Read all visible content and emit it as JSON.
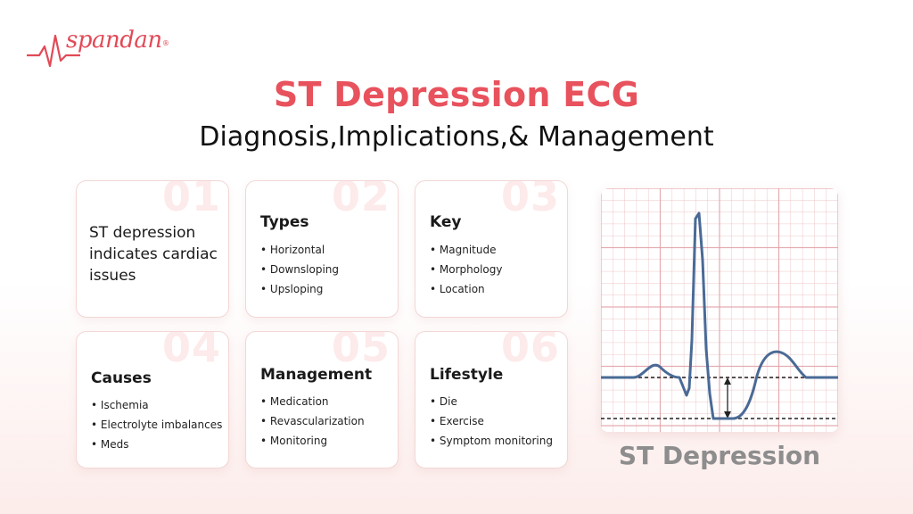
{
  "brand": {
    "name": "spandan",
    "registered": "®",
    "color": "#e24a57"
  },
  "title": "ST Depression ECG",
  "subtitle": "Diagnosis,Implications,& Management",
  "cards": [
    {
      "number": "01",
      "text": "ST depression indicates cardiac issues"
    },
    {
      "number": "02",
      "heading": "Types",
      "items": [
        "Horizontal",
        "Downsloping",
        "Upsloping"
      ]
    },
    {
      "number": "03",
      "heading": "Key",
      "items": [
        "Magnitude",
        "Morphology",
        "Location"
      ]
    },
    {
      "number": "04",
      "heading": "Causes",
      "items": [
        "Ischemia",
        "Electrolyte imbalances",
        "Meds"
      ]
    },
    {
      "number": "05",
      "heading": "Management",
      "items": [
        "Medication",
        "Revascularization",
        "Monitoring"
      ]
    },
    {
      "number": "06",
      "heading": "Lifestyle",
      "items": [
        "Die",
        "Exercise",
        "Symptom monitoring"
      ]
    }
  ],
  "ecg": {
    "caption": "ST Depression",
    "trace_color": "#4a6a96",
    "grid_color": "#e3a3a8"
  }
}
